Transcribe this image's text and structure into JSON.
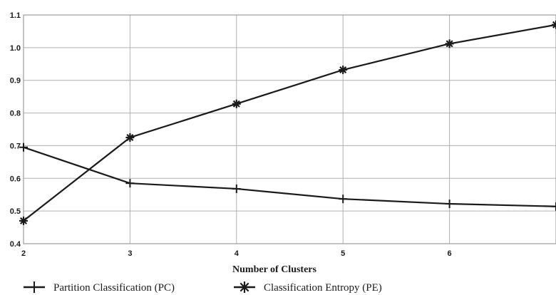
{
  "chart_data": {
    "type": "line",
    "title": "",
    "xlabel": "Number of Clusters",
    "ylabel": "",
    "x": [
      2,
      3,
      4,
      5,
      6,
      7
    ],
    "xticks": [
      "2",
      "3",
      "4",
      "5",
      "6"
    ],
    "yticks": [
      "0.4",
      "0.5",
      "0.6",
      "0.7",
      "0.8",
      "0.9",
      "1.0",
      "1.1"
    ],
    "xlim": [
      2,
      7
    ],
    "ylim": [
      0.4,
      1.1
    ],
    "grid": true,
    "legend_position": "bottom",
    "series": [
      {
        "name": "Partition Classification (PC)",
        "marker": "plus",
        "values": [
          0.695,
          0.585,
          0.568,
          0.537,
          0.522,
          0.514
        ]
      },
      {
        "name": "Classification Entropy (PE)",
        "marker": "asterisk",
        "values": [
          0.47,
          0.725,
          0.828,
          0.932,
          1.012,
          1.07
        ]
      }
    ],
    "colors": {
      "line": "#1a1a1a",
      "grid": "#b0b0b0",
      "background": "#ffffff"
    }
  }
}
